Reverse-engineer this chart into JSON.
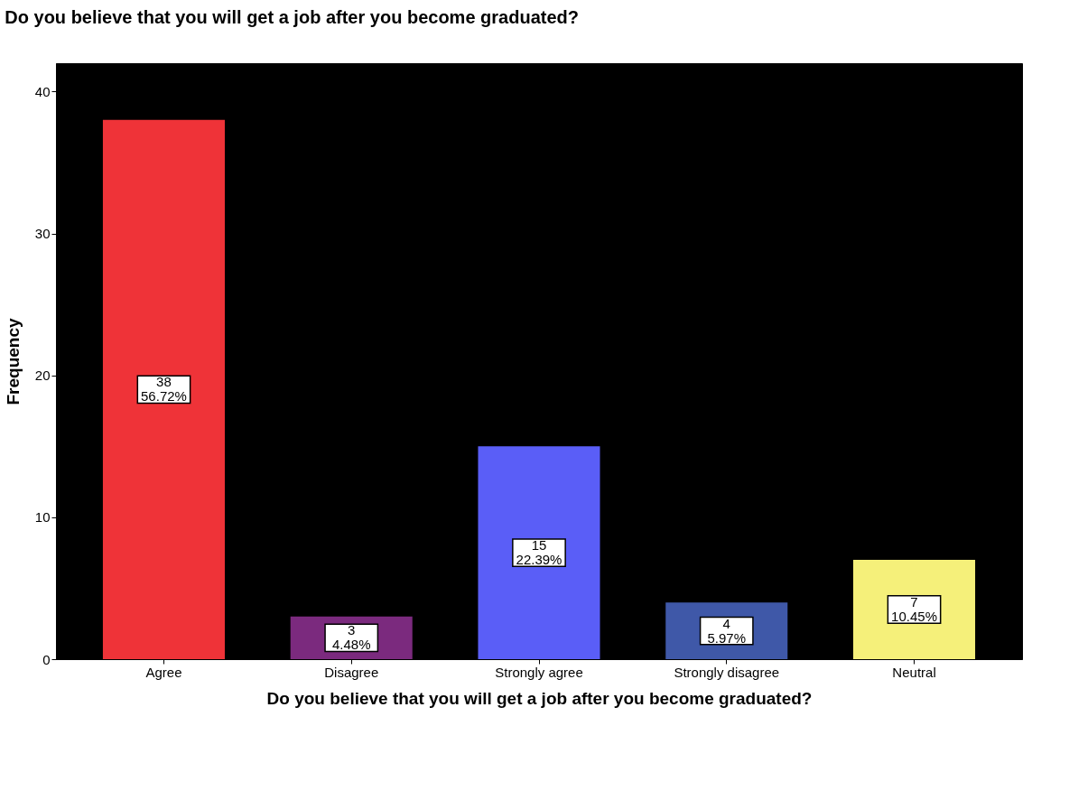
{
  "chart_data": {
    "type": "bar",
    "title": "Do you believe that you will get a job after you become graduated?",
    "xlabel": "Do you believe that you will get a job after you become graduated?",
    "ylabel": "Frequency",
    "categories": [
      "Agree",
      "Disagree",
      "Strongly agree",
      "Strongly disagree",
      "Neutral"
    ],
    "values": [
      38,
      3,
      15,
      4,
      7
    ],
    "colors": [
      "#ef3338",
      "#7b2a7e",
      "#5a5ef7",
      "#3f58a8",
      "#f5f07a"
    ],
    "value_labels": [
      "38\n56.72%",
      "3\n4.48%",
      "15\n22.39%",
      "4\n5.97%",
      "7\n10.45%"
    ],
    "ylim": [
      0,
      42
    ],
    "yticks": [
      0,
      10,
      20,
      30,
      40
    ],
    "grid": false
  }
}
